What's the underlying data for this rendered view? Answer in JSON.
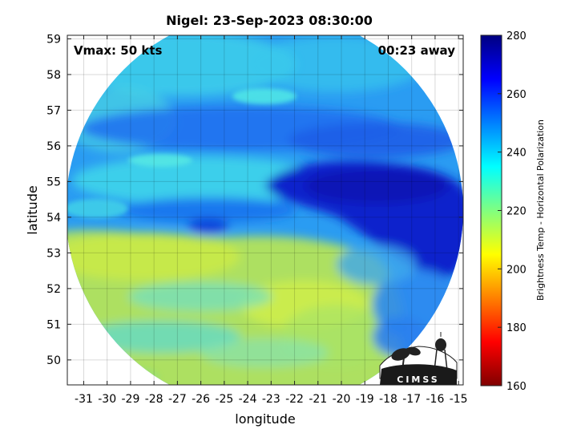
{
  "header": {
    "title": "Nigel: 23-Sep-2023 08:30:00",
    "vmax": "Vmax: 50 kts",
    "away": "00:23 away"
  },
  "map": {
    "xlabel": "longitude",
    "ylabel": "latitude",
    "lon_range": [
      -31.7,
      -14.8
    ],
    "lat_range": [
      49.3,
      59.1
    ],
    "lon_ticks": [
      -31,
      -30,
      -29,
      -28,
      -27,
      -26,
      -25,
      -24,
      -23,
      -22,
      -21,
      -20,
      -19,
      -18,
      -17,
      -16,
      -15
    ],
    "lat_ticks": [
      50,
      51,
      52,
      53,
      54,
      55,
      56,
      57,
      58,
      59
    ],
    "grid": true,
    "swath": "circular scan footprint, centered near 23.25W 54.1N",
    "colors": {
      "warm_yellow": "#c8e84a",
      "cyan": "#3fd8e8",
      "blue": "#1e82f0",
      "dark_blue": "#0a1fc8"
    }
  },
  "colorbar": {
    "label": "Brightness Temp - Horizontal Polarization",
    "ticks": [
      160,
      180,
      200,
      220,
      240,
      260,
      280
    ],
    "range": [
      160,
      280
    ],
    "colormap": "jet"
  },
  "logo": {
    "text": "CIMSS"
  }
}
